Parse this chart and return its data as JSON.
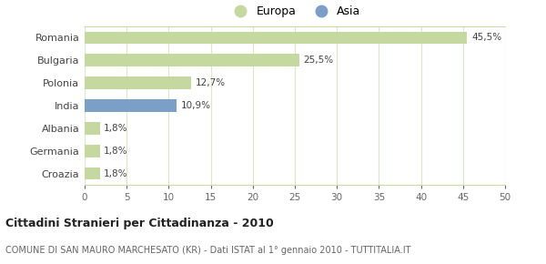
{
  "categories": [
    "Romania",
    "Bulgaria",
    "Polonia",
    "India",
    "Albania",
    "Germania",
    "Croazia"
  ],
  "values": [
    45.5,
    25.5,
    12.7,
    10.9,
    1.8,
    1.8,
    1.8
  ],
  "labels": [
    "45,5%",
    "25,5%",
    "12,7%",
    "10,9%",
    "1,8%",
    "1,8%",
    "1,8%"
  ],
  "colors": [
    "#c5d8a0",
    "#c5d8a0",
    "#c5d8a0",
    "#7b9fc7",
    "#c5d8a0",
    "#c5d8a0",
    "#c5d8a0"
  ],
  "europa_color": "#c5d8a0",
  "asia_color": "#7b9fc7",
  "xlim": [
    0,
    50
  ],
  "xticks": [
    0,
    5,
    10,
    15,
    20,
    25,
    30,
    35,
    40,
    45,
    50
  ],
  "legend_labels": [
    "Europa",
    "Asia"
  ],
  "title_bold": "Cittadini Stranieri per Cittadinanza - 2010",
  "subtitle": "COMUNE DI SAN MAURO MARCHESATO (KR) - Dati ISTAT al 1° gennaio 2010 - TUTTITALIA.IT",
  "bg_color": "#ffffff",
  "grid_color": "#d8e8c8"
}
